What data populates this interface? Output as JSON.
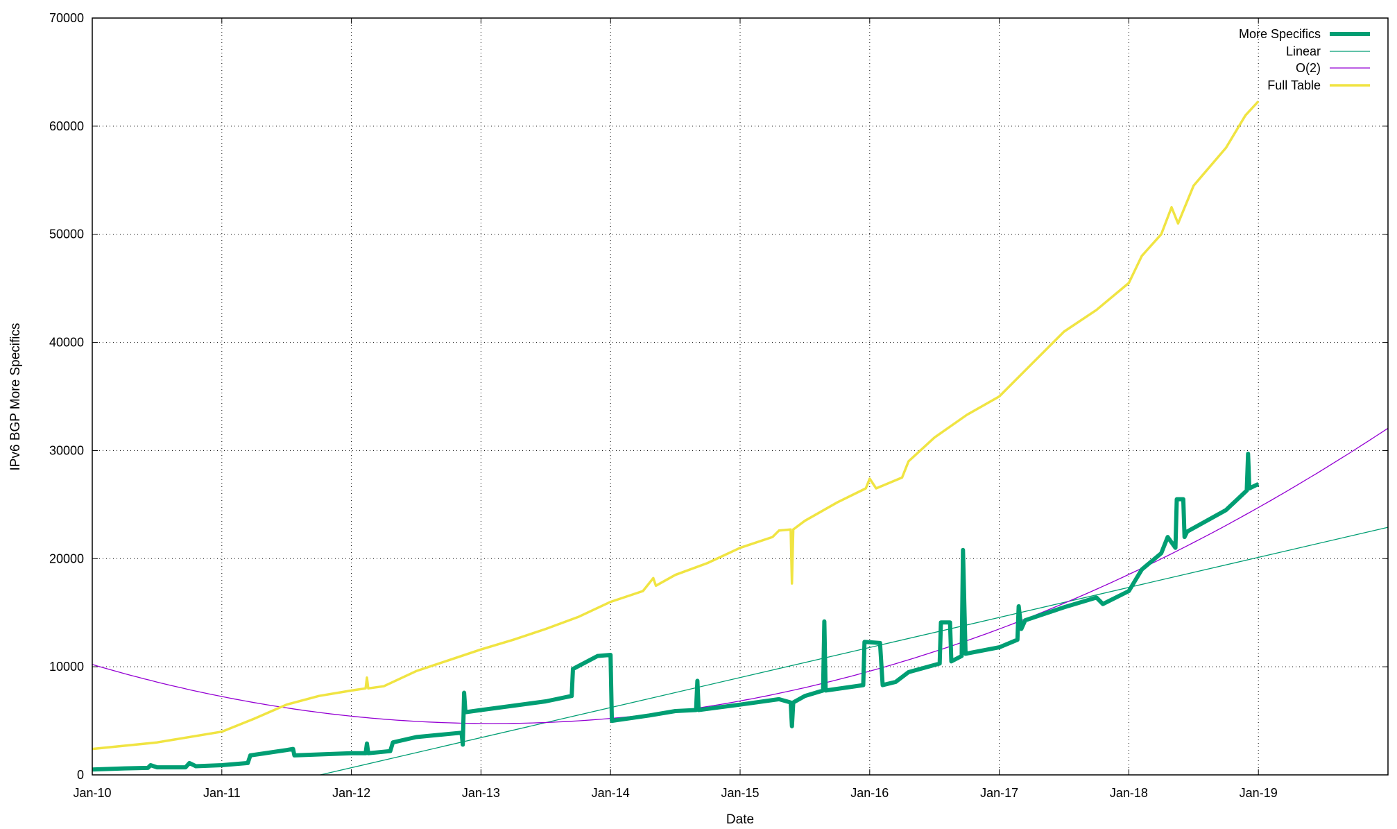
{
  "chart_data": {
    "type": "line",
    "title": "",
    "xlabel": "Date",
    "ylabel": "IPv6 BGP More Specifics",
    "xlim": [
      2010.0,
      2020.0
    ],
    "ylim": [
      0,
      70000
    ],
    "grid": true,
    "legend_position": "top-right",
    "x_ticks": [
      {
        "value": 2010,
        "label": "Jan-10"
      },
      {
        "value": 2011,
        "label": "Jan-11"
      },
      {
        "value": 2012,
        "label": "Jan-12"
      },
      {
        "value": 2013,
        "label": "Jan-13"
      },
      {
        "value": 2014,
        "label": "Jan-14"
      },
      {
        "value": 2015,
        "label": "Jan-15"
      },
      {
        "value": 2016,
        "label": "Jan-16"
      },
      {
        "value": 2017,
        "label": "Jan-17"
      },
      {
        "value": 2018,
        "label": "Jan-18"
      },
      {
        "value": 2019,
        "label": "Jan-19"
      }
    ],
    "y_ticks": [
      {
        "value": 0,
        "label": "0"
      },
      {
        "value": 10000,
        "label": "10000"
      },
      {
        "value": 20000,
        "label": "20000"
      },
      {
        "value": 30000,
        "label": "30000"
      },
      {
        "value": 40000,
        "label": "40000"
      },
      {
        "value": 50000,
        "label": "50000"
      },
      {
        "value": 60000,
        "label": "60000"
      },
      {
        "value": 70000,
        "label": "70000"
      }
    ],
    "series": [
      {
        "name": "More Specifics",
        "color": "#009e73",
        "style": "thick",
        "points": [
          [
            2010.0,
            500
          ],
          [
            2010.25,
            600
          ],
          [
            2010.43,
            650
          ],
          [
            2010.45,
            900
          ],
          [
            2010.5,
            700
          ],
          [
            2010.72,
            700
          ],
          [
            2010.75,
            1100
          ],
          [
            2010.8,
            800
          ],
          [
            2011.0,
            900
          ],
          [
            2011.2,
            1100
          ],
          [
            2011.22,
            1800
          ],
          [
            2011.5,
            2300
          ],
          [
            2011.55,
            2400
          ],
          [
            2011.56,
            1800
          ],
          [
            2012.0,
            2000
          ],
          [
            2012.11,
            2000
          ],
          [
            2012.12,
            2900
          ],
          [
            2012.13,
            2000
          ],
          [
            2012.3,
            2200
          ],
          [
            2012.32,
            3000
          ],
          [
            2012.5,
            3500
          ],
          [
            2012.85,
            3900
          ],
          [
            2012.86,
            2800
          ],
          [
            2012.87,
            7600
          ],
          [
            2012.88,
            5800
          ],
          [
            2013.0,
            6000
          ],
          [
            2013.5,
            6800
          ],
          [
            2013.7,
            7300
          ],
          [
            2013.71,
            9800
          ],
          [
            2013.9,
            11000
          ],
          [
            2014.0,
            11100
          ],
          [
            2014.01,
            5000
          ],
          [
            2014.3,
            5500
          ],
          [
            2014.5,
            5900
          ],
          [
            2014.66,
            6000
          ],
          [
            2014.67,
            8700
          ],
          [
            2014.68,
            6000
          ],
          [
            2015.0,
            6500
          ],
          [
            2015.3,
            7000
          ],
          [
            2015.39,
            6700
          ],
          [
            2015.4,
            4500
          ],
          [
            2015.41,
            6700
          ],
          [
            2015.5,
            7300
          ],
          [
            2015.64,
            7800
          ],
          [
            2015.65,
            14200
          ],
          [
            2015.66,
            7800
          ],
          [
            2015.95,
            8300
          ],
          [
            2015.96,
            12300
          ],
          [
            2016.08,
            12200
          ],
          [
            2016.1,
            8300
          ],
          [
            2016.2,
            8600
          ],
          [
            2016.3,
            9500
          ],
          [
            2016.54,
            10300
          ],
          [
            2016.55,
            14100
          ],
          [
            2016.62,
            14100
          ],
          [
            2016.63,
            10500
          ],
          [
            2016.71,
            11000
          ],
          [
            2016.72,
            20800
          ],
          [
            2016.74,
            11200
          ],
          [
            2017.0,
            11800
          ],
          [
            2017.14,
            12500
          ],
          [
            2017.15,
            15600
          ],
          [
            2017.17,
            13500
          ],
          [
            2017.2,
            14300
          ],
          [
            2017.5,
            15500
          ],
          [
            2017.75,
            16400
          ],
          [
            2017.8,
            15800
          ],
          [
            2018.0,
            17000
          ],
          [
            2018.1,
            19000
          ],
          [
            2018.25,
            20500
          ],
          [
            2018.3,
            22000
          ],
          [
            2018.36,
            21000
          ],
          [
            2018.37,
            25500
          ],
          [
            2018.42,
            25500
          ],
          [
            2018.43,
            22000
          ],
          [
            2018.45,
            22500
          ],
          [
            2018.75,
            24500
          ],
          [
            2018.91,
            26300
          ],
          [
            2018.92,
            29700
          ],
          [
            2018.93,
            26500
          ],
          [
            2019.0,
            26900
          ]
        ]
      },
      {
        "name": "Linear",
        "color": "#009e73",
        "style": "thin",
        "fit": {
          "kind": "linear",
          "zero_at": 2011.76,
          "slope_per_year": 2779
        },
        "points": [
          [
            2011.76,
            0
          ],
          [
            2020.0,
            22900
          ]
        ]
      },
      {
        "name": "O(2)",
        "color": "#9400d3",
        "style": "thin",
        "fit": {
          "kind": "quadratic",
          "vertex_x": 2013.09,
          "vertex_y": 4750,
          "a": 572
        }
      },
      {
        "name": "Full Table",
        "color": "#f0e442",
        "style": "medium",
        "points": [
          [
            2010.0,
            2400
          ],
          [
            2010.5,
            3000
          ],
          [
            2011.0,
            4000
          ],
          [
            2011.25,
            5200
          ],
          [
            2011.5,
            6500
          ],
          [
            2011.75,
            7300
          ],
          [
            2012.0,
            7800
          ],
          [
            2012.11,
            8000
          ],
          [
            2012.12,
            9000
          ],
          [
            2012.13,
            8000
          ],
          [
            2012.25,
            8200
          ],
          [
            2012.5,
            9600
          ],
          [
            2012.75,
            10600
          ],
          [
            2013.0,
            11600
          ],
          [
            2013.25,
            12500
          ],
          [
            2013.5,
            13500
          ],
          [
            2013.75,
            14600
          ],
          [
            2014.0,
            16000
          ],
          [
            2014.25,
            17000
          ],
          [
            2014.33,
            18200
          ],
          [
            2014.35,
            17500
          ],
          [
            2014.5,
            18500
          ],
          [
            2014.75,
            19600
          ],
          [
            2015.0,
            21000
          ],
          [
            2015.25,
            22000
          ],
          [
            2015.3,
            22600
          ],
          [
            2015.39,
            22700
          ],
          [
            2015.4,
            17700
          ],
          [
            2015.41,
            22700
          ],
          [
            2015.5,
            23500
          ],
          [
            2015.75,
            25200
          ],
          [
            2015.97,
            26500
          ],
          [
            2016.0,
            27400
          ],
          [
            2016.05,
            26500
          ],
          [
            2016.25,
            27500
          ],
          [
            2016.3,
            29000
          ],
          [
            2016.5,
            31200
          ],
          [
            2016.75,
            33300
          ],
          [
            2017.0,
            35000
          ],
          [
            2017.25,
            38000
          ],
          [
            2017.5,
            41000
          ],
          [
            2017.75,
            43000
          ],
          [
            2018.0,
            45500
          ],
          [
            2018.1,
            48000
          ],
          [
            2018.25,
            50000
          ],
          [
            2018.33,
            52500
          ],
          [
            2018.38,
            51000
          ],
          [
            2018.5,
            54500
          ],
          [
            2018.75,
            58000
          ],
          [
            2018.9,
            61000
          ],
          [
            2019.0,
            62300
          ]
        ]
      }
    ]
  }
}
